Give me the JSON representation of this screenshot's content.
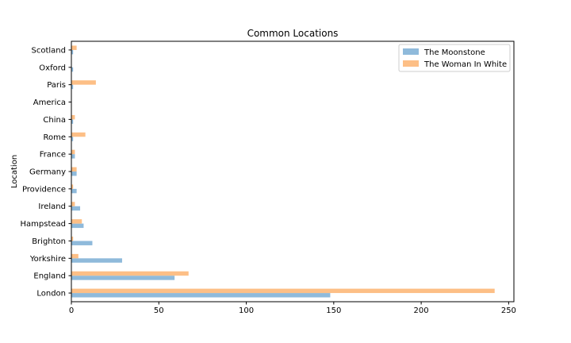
{
  "chart_data": {
    "type": "bar",
    "orientation": "horizontal",
    "title": "Common Locations",
    "xlabel": "",
    "ylabel": "Location",
    "xlim": [
      0,
      253
    ],
    "xticks": [
      0,
      50,
      100,
      150,
      200,
      250
    ],
    "grid": false,
    "legend_position": "top-right",
    "categories": [
      "London",
      "England",
      "Yorkshire",
      "Brighton",
      "Hampstead",
      "Ireland",
      "Providence",
      "Germany",
      "France",
      "Rome",
      "China",
      "America",
      "Paris",
      "Oxford",
      "Scotland"
    ],
    "series": [
      {
        "name": "The Moonstone",
        "color": "#8fbadb",
        "values": [
          148,
          59,
          29,
          12,
          7,
          5,
          3,
          3,
          2,
          1,
          1,
          0,
          1,
          1,
          1
        ]
      },
      {
        "name": "The Woman In White",
        "color": "#fdbf86",
        "values": [
          242,
          67,
          4,
          1,
          6,
          2,
          1,
          3,
          2,
          8,
          2,
          0,
          14,
          0,
          3
        ]
      }
    ]
  }
}
